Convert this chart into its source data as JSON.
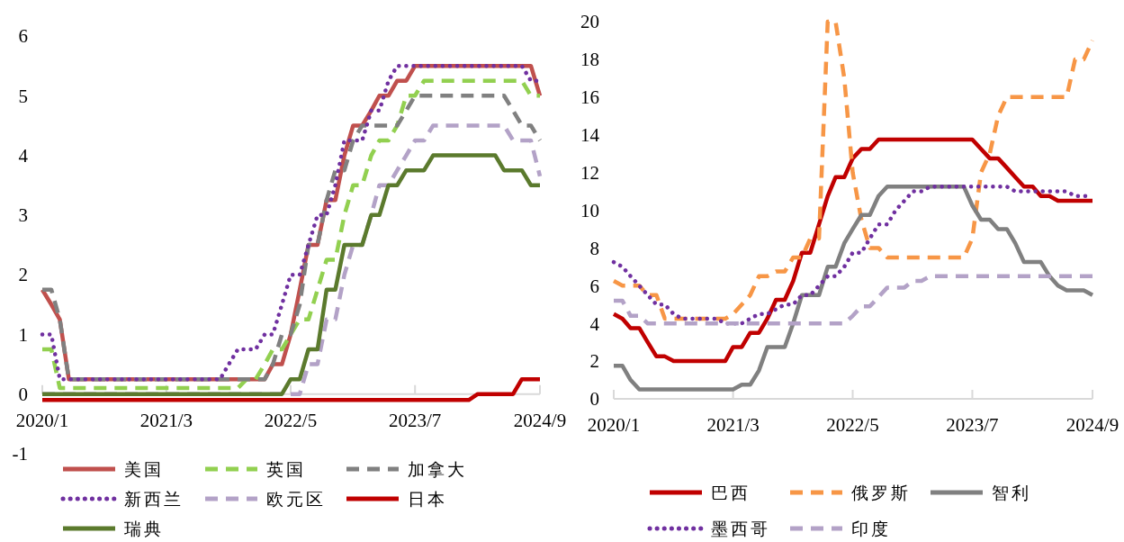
{
  "chart_data": [
    {
      "type": "line",
      "x": [
        "2020-01",
        "2020-02",
        "2020-03",
        "2020-04",
        "2020-05",
        "2020-06",
        "2020-07",
        "2020-08",
        "2020-09",
        "2020-10",
        "2020-11",
        "2020-12",
        "2021-01",
        "2021-02",
        "2021-03",
        "2021-04",
        "2021-05",
        "2021-06",
        "2021-07",
        "2021-08",
        "2021-09",
        "2021-10",
        "2021-11",
        "2021-12",
        "2022-01",
        "2022-02",
        "2022-03",
        "2022-04",
        "2022-05",
        "2022-06",
        "2022-07",
        "2022-08",
        "2022-09",
        "2022-10",
        "2022-11",
        "2022-12",
        "2023-01",
        "2023-02",
        "2023-03",
        "2023-04",
        "2023-05",
        "2023-06",
        "2023-07",
        "2023-08",
        "2023-09",
        "2023-10",
        "2023-11",
        "2023-12",
        "2024-01",
        "2024-02",
        "2024-03",
        "2024-04",
        "2024-05",
        "2024-06",
        "2024-07",
        "2024-08",
        "2024-09"
      ],
      "xlim": [
        "2020-01",
        "2024-09"
      ],
      "xticks": [
        {
          "value": "2020-01",
          "label": "2020/1"
        },
        {
          "value": "2021-03",
          "label": "2021/3"
        },
        {
          "value": "2022-05",
          "label": "2022/5"
        },
        {
          "value": "2023-07",
          "label": "2023/7"
        },
        {
          "value": "2024-09",
          "label": "2024/9"
        }
      ],
      "ylim": [
        -1,
        6
      ],
      "yticks": [
        -1,
        0,
        1,
        2,
        3,
        4,
        5,
        6
      ],
      "legend": "bottom",
      "series": [
        {
          "name": "美国",
          "color": "#c0504d",
          "line_style": "solid",
          "values": [
            1.75,
            1.5,
            1.25,
            0.25,
            0.25,
            0.25,
            0.25,
            0.25,
            0.25,
            0.25,
            0.25,
            0.25,
            0.25,
            0.25,
            0.25,
            0.25,
            0.25,
            0.25,
            0.25,
            0.25,
            0.25,
            0.25,
            0.25,
            0.25,
            0.25,
            0.25,
            0.5,
            0.5,
            1,
            1.75,
            2.5,
            2.5,
            3.25,
            3.25,
            4,
            4.5,
            4.5,
            4.75,
            5,
            5,
            5.25,
            5.25,
            5.5,
            5.5,
            5.5,
            5.5,
            5.5,
            5.5,
            5.5,
            5.5,
            5.5,
            5.5,
            5.5,
            5.5,
            5.5,
            5.5,
            5
          ]
        },
        {
          "name": "英国",
          "color": "#92d050",
          "line_style": "dashed",
          "values": [
            0.75,
            0.75,
            0.1,
            0.1,
            0.1,
            0.1,
            0.1,
            0.1,
            0.1,
            0.1,
            0.1,
            0.1,
            0.1,
            0.1,
            0.1,
            0.1,
            0.1,
            0.1,
            0.1,
            0.1,
            0.1,
            0.1,
            0.1,
            0.25,
            0.25,
            0.5,
            0.75,
            0.75,
            1,
            1.25,
            1.25,
            1.75,
            2.25,
            2.25,
            3,
            3.5,
            3.5,
            4,
            4.25,
            4.25,
            4.5,
            5,
            5,
            5.25,
            5.25,
            5.25,
            5.25,
            5.25,
            5.25,
            5.25,
            5.25,
            5.25,
            5.25,
            5.25,
            5.25,
            5,
            5
          ]
        },
        {
          "name": "加拿大",
          "color": "#808080",
          "line_style": "dashed",
          "values": [
            1.75,
            1.75,
            1.25,
            0.25,
            0.25,
            0.25,
            0.25,
            0.25,
            0.25,
            0.25,
            0.25,
            0.25,
            0.25,
            0.25,
            0.25,
            0.25,
            0.25,
            0.25,
            0.25,
            0.25,
            0.25,
            0.25,
            0.25,
            0.25,
            0.25,
            0.25,
            0.5,
            1,
            1,
            1.5,
            2.5,
            2.5,
            3.25,
            3.75,
            3.75,
            4.25,
            4.5,
            4.5,
            4.5,
            4.5,
            4.5,
            4.75,
            5,
            5,
            5,
            5,
            5,
            5,
            5,
            5,
            5,
            5,
            5,
            4.75,
            4.5,
            4.5,
            4.25
          ]
        },
        {
          "name": "新西兰",
          "color": "#7030a0",
          "line_style": "dotted",
          "values": [
            1,
            1,
            0.25,
            0.25,
            0.25,
            0.25,
            0.25,
            0.25,
            0.25,
            0.25,
            0.25,
            0.25,
            0.25,
            0.25,
            0.25,
            0.25,
            0.25,
            0.25,
            0.25,
            0.25,
            0.25,
            0.5,
            0.75,
            0.75,
            0.75,
            1,
            1,
            1.5,
            2,
            2,
            2.5,
            3,
            3,
            3.5,
            4.25,
            4.25,
            4.25,
            4.75,
            4.75,
            5.25,
            5.5,
            5.5,
            5.5,
            5.5,
            5.5,
            5.5,
            5.5,
            5.5,
            5.5,
            5.5,
            5.5,
            5.5,
            5.5,
            5.5,
            5.5,
            5.25,
            5.25
          ]
        },
        {
          "name": "欧元区",
          "color": "#b3a2c7",
          "line_style": "dashed",
          "values": [
            0,
            0,
            0,
            0,
            0,
            0,
            0,
            0,
            0,
            0,
            0,
            0,
            0,
            0,
            0,
            0,
            0,
            0,
            0,
            0,
            0,
            0,
            0,
            0,
            0,
            0,
            0,
            0,
            0,
            0,
            0.5,
            0.5,
            1.25,
            1.25,
            2,
            2.5,
            2.5,
            3,
            3.5,
            3.5,
            3.75,
            4,
            4.25,
            4.25,
            4.5,
            4.5,
            4.5,
            4.5,
            4.5,
            4.5,
            4.5,
            4.5,
            4.5,
            4.25,
            4.25,
            4.25,
            3.65
          ]
        },
        {
          "name": "日本",
          "color": "#c00000",
          "line_style": "solid",
          "values": [
            -0.1,
            -0.1,
            -0.1,
            -0.1,
            -0.1,
            -0.1,
            -0.1,
            -0.1,
            -0.1,
            -0.1,
            -0.1,
            -0.1,
            -0.1,
            -0.1,
            -0.1,
            -0.1,
            -0.1,
            -0.1,
            -0.1,
            -0.1,
            -0.1,
            -0.1,
            -0.1,
            -0.1,
            -0.1,
            -0.1,
            -0.1,
            -0.1,
            -0.1,
            -0.1,
            -0.1,
            -0.1,
            -0.1,
            -0.1,
            -0.1,
            -0.1,
            -0.1,
            -0.1,
            -0.1,
            -0.1,
            -0.1,
            -0.1,
            -0.1,
            -0.1,
            -0.1,
            -0.1,
            -0.1,
            -0.1,
            -0.1,
            0,
            0,
            0,
            0,
            0,
            0.25,
            0.25,
            0.25
          ]
        },
        {
          "name": "瑞典",
          "color": "#5b7a2d",
          "line_style": "solid",
          "values": [
            0,
            0,
            0,
            0,
            0,
            0,
            0,
            0,
            0,
            0,
            0,
            0,
            0,
            0,
            0,
            0,
            0,
            0,
            0,
            0,
            0,
            0,
            0,
            0,
            0,
            0,
            0,
            0,
            0.25,
            0.25,
            0.75,
            0.75,
            1.75,
            1.75,
            2.5,
            2.5,
            2.5,
            3,
            3,
            3.5,
            3.5,
            3.75,
            3.75,
            3.75,
            4,
            4,
            4,
            4,
            4,
            4,
            4,
            4,
            3.75,
            3.75,
            3.75,
            3.5,
            3.5
          ]
        }
      ]
    },
    {
      "type": "line",
      "x": [
        "2020-01",
        "2020-02",
        "2020-03",
        "2020-04",
        "2020-05",
        "2020-06",
        "2020-07",
        "2020-08",
        "2020-09",
        "2020-10",
        "2020-11",
        "2020-12",
        "2021-01",
        "2021-02",
        "2021-03",
        "2021-04",
        "2021-05",
        "2021-06",
        "2021-07",
        "2021-08",
        "2021-09",
        "2021-10",
        "2021-11",
        "2021-12",
        "2022-01",
        "2022-02",
        "2022-03",
        "2022-04",
        "2022-05",
        "2022-06",
        "2022-07",
        "2022-08",
        "2022-09",
        "2022-10",
        "2022-11",
        "2022-12",
        "2023-01",
        "2023-02",
        "2023-03",
        "2023-04",
        "2023-05",
        "2023-06",
        "2023-07",
        "2023-08",
        "2023-09",
        "2023-10",
        "2023-11",
        "2023-12",
        "2024-01",
        "2024-02",
        "2024-03",
        "2024-04",
        "2024-05",
        "2024-06",
        "2024-07",
        "2024-08",
        "2024-09"
      ],
      "xlim": [
        "2020-01",
        "2024-09"
      ],
      "xticks": [
        {
          "value": "2020-01",
          "label": "2020/1"
        },
        {
          "value": "2021-03",
          "label": "2021/3"
        },
        {
          "value": "2022-05",
          "label": "2022/5"
        },
        {
          "value": "2023-07",
          "label": "2023/7"
        },
        {
          "value": "2024-09",
          "label": "2024/9"
        }
      ],
      "ylim": [
        0,
        20
      ],
      "yticks": [
        0,
        2,
        4,
        6,
        8,
        10,
        12,
        14,
        16,
        18,
        20
      ],
      "legend": "bottom",
      "series": [
        {
          "name": "巴西",
          "color": "#c00000",
          "line_style": "solid",
          "values": [
            4.5,
            4.25,
            3.75,
            3.75,
            3,
            2.25,
            2.25,
            2,
            2,
            2,
            2,
            2,
            2,
            2,
            2.75,
            2.75,
            3.5,
            3.5,
            4.25,
            5.25,
            5.25,
            6.25,
            7.75,
            7.75,
            9.25,
            10.75,
            11.75,
            11.75,
            12.75,
            13.25,
            13.25,
            13.75,
            13.75,
            13.75,
            13.75,
            13.75,
            13.75,
            13.75,
            13.75,
            13.75,
            13.75,
            13.75,
            13.75,
            13.25,
            12.75,
            12.75,
            12.25,
            11.75,
            11.25,
            11.25,
            10.75,
            10.75,
            10.5,
            10.5,
            10.5,
            10.5,
            10.5
          ]
        },
        {
          "name": "俄罗斯",
          "color": "#f79646",
          "line_style": "dashed",
          "values": [
            6.25,
            6,
            6,
            6,
            5.5,
            5.5,
            4.25,
            4.25,
            4.25,
            4.25,
            4.25,
            4.25,
            4.25,
            4.25,
            4.5,
            5,
            5.5,
            6.5,
            6.5,
            6.75,
            6.75,
            7.5,
            7.5,
            8.5,
            8.5,
            20,
            20,
            17,
            12,
            9.5,
            8,
            8,
            7.5,
            7.5,
            7.5,
            7.5,
            7.5,
            7.5,
            7.5,
            7.5,
            7.5,
            7.5,
            8.5,
            12,
            13,
            15,
            16,
            16,
            16,
            16,
            16,
            16,
            16,
            16,
            18,
            18,
            19
          ]
        },
        {
          "name": "智利",
          "color": "#808080",
          "line_style": "solid",
          "values": [
            1.75,
            1.75,
            1,
            0.5,
            0.5,
            0.5,
            0.5,
            0.5,
            0.5,
            0.5,
            0.5,
            0.5,
            0.5,
            0.5,
            0.5,
            0.75,
            0.75,
            1.5,
            2.75,
            2.75,
            2.75,
            4,
            5.5,
            5.5,
            5.5,
            7,
            7,
            8.25,
            9,
            9.75,
            9.75,
            10.75,
            11.25,
            11.25,
            11.25,
            11.25,
            11.25,
            11.25,
            11.25,
            11.25,
            11.25,
            11.25,
            10.25,
            9.5,
            9.5,
            9,
            9,
            8.25,
            7.25,
            7.25,
            7.25,
            6.5,
            6,
            5.75,
            5.75,
            5.75,
            5.5
          ]
        },
        {
          "name": "墨西哥",
          "color": "#7030a0",
          "line_style": "dotted",
          "values": [
            7.25,
            7,
            6.5,
            6,
            5.5,
            5,
            5,
            4.5,
            4.25,
            4.25,
            4.25,
            4.25,
            4.25,
            4,
            4,
            4,
            4.25,
            4.5,
            4.5,
            4.75,
            5,
            5,
            5.5,
            5.5,
            6,
            6.5,
            6.5,
            7,
            7.75,
            7.75,
            8.5,
            9.25,
            9.25,
            10,
            10.5,
            11,
            11,
            11.25,
            11.25,
            11.25,
            11.25,
            11.25,
            11.25,
            11.25,
            11.25,
            11.25,
            11.25,
            11,
            11,
            11,
            11,
            11,
            11,
            11,
            10.75,
            10.75,
            10.75
          ]
        },
        {
          "name": "印度",
          "color": "#b3a2c7",
          "line_style": "dashed",
          "values": [
            5.2,
            5.2,
            4.4,
            4.4,
            4,
            4,
            4,
            4,
            4,
            4,
            4,
            4,
            4,
            4,
            4,
            4,
            4,
            4,
            4,
            4,
            4,
            4,
            4,
            4,
            4,
            4,
            4,
            4,
            4.4,
            4.9,
            4.9,
            5.4,
            5.9,
            5.9,
            5.9,
            6.25,
            6.25,
            6.5,
            6.5,
            6.5,
            6.5,
            6.5,
            6.5,
            6.5,
            6.5,
            6.5,
            6.5,
            6.5,
            6.5,
            6.5,
            6.5,
            6.5,
            6.5,
            6.5,
            6.5,
            6.5,
            6.5
          ]
        }
      ]
    }
  ]
}
